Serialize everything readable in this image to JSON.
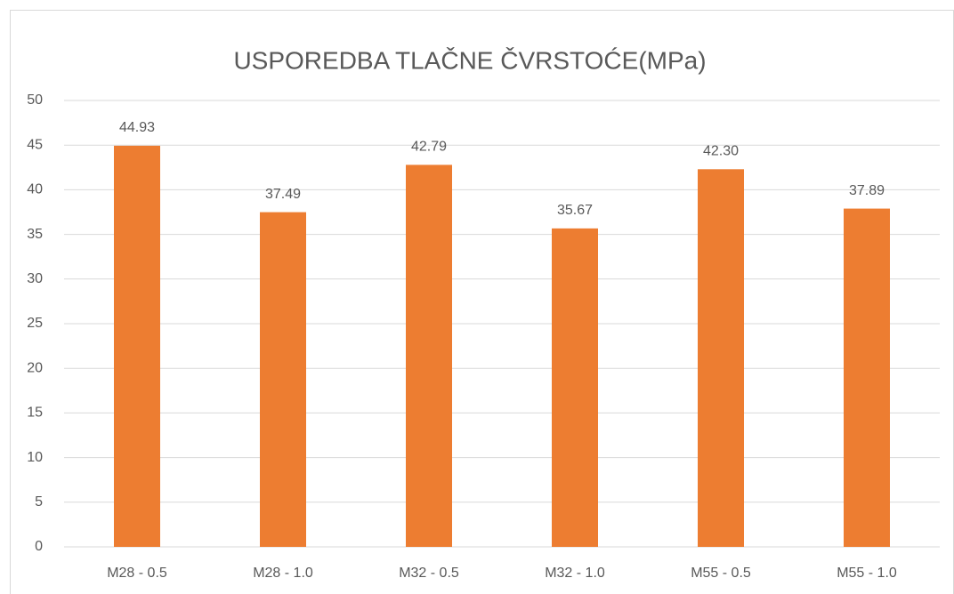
{
  "chart_data": {
    "type": "bar",
    "title": "USPOREDBA TLAČNE ČVRSTOĆE(MPa)",
    "categories": [
      "M28 - 0.5",
      "M28 - 1.0",
      "M32 - 0.5",
      "M32 - 1.0",
      "M55 - 0.5",
      "M55 - 1.0"
    ],
    "values": [
      44.93,
      37.49,
      42.79,
      35.67,
      42.3,
      37.89
    ],
    "value_labels": [
      "44.93",
      "37.49",
      "42.79",
      "35.67",
      "42.30",
      "37.89"
    ],
    "color": "#ed7d31",
    "ylim": [
      0,
      50
    ],
    "yticks": [
      0,
      5,
      10,
      15,
      20,
      25,
      30,
      35,
      40,
      45,
      50
    ],
    "grid": true
  }
}
